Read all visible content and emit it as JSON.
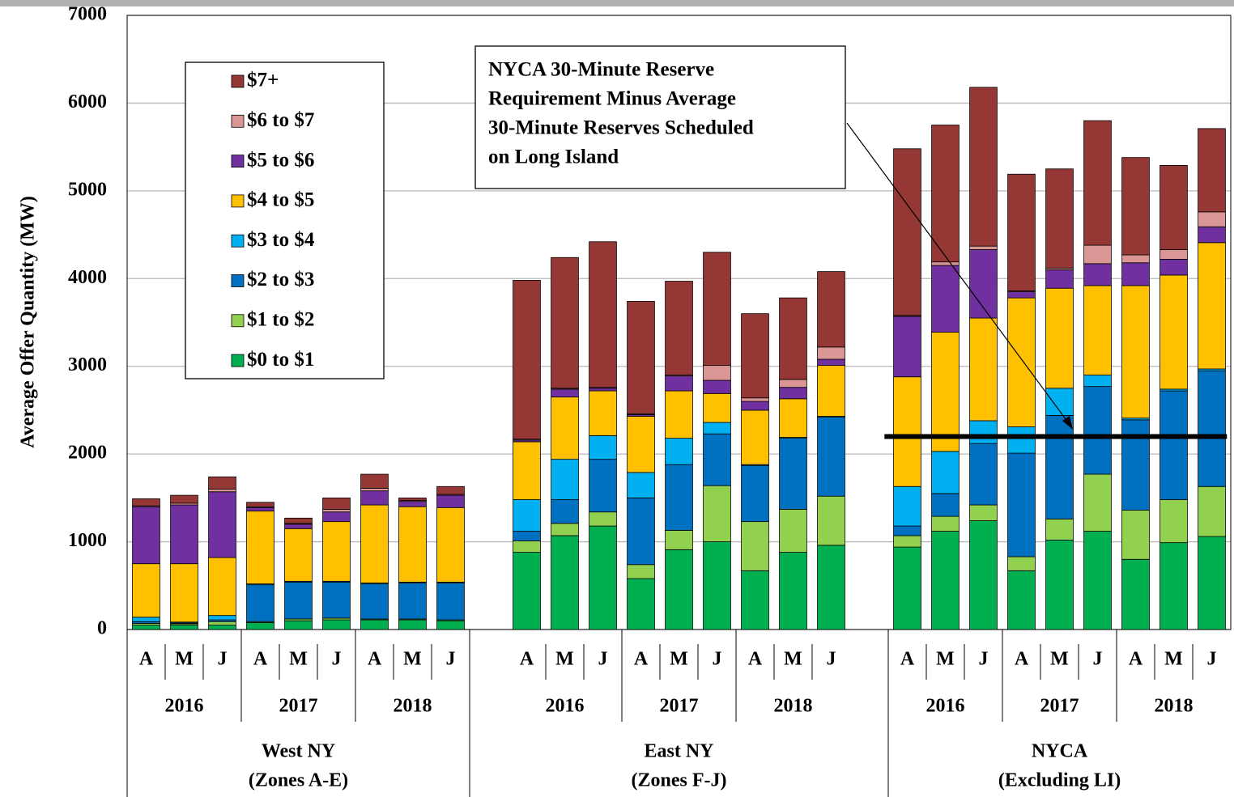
{
  "chart_data": {
    "type": "stacked_bar",
    "ylabel": "Average Offer Quantity (MW)",
    "ylim": [
      0,
      7000
    ],
    "yticks": [
      0,
      1000,
      2000,
      3000,
      4000,
      5000,
      6000,
      7000
    ],
    "grid": true,
    "categories": [
      "A",
      "M",
      "J",
      "A",
      "M",
      "J",
      "A",
      "M",
      "J",
      null,
      "A",
      "M",
      "J",
      "A",
      "M",
      "J",
      "A",
      "M",
      "J",
      null,
      "A",
      "M",
      "J",
      "A",
      "M",
      "J",
      "A",
      "M",
      "J"
    ],
    "years": [
      "2016",
      "2017",
      "2018"
    ],
    "regions": [
      [
        "West NY",
        "(Zones A-E)"
      ],
      [
        "East NY",
        "(Zones F-J)"
      ],
      [
        "NYCA",
        "(Excluding LI)"
      ]
    ],
    "series": [
      {
        "name": "$0 to $1",
        "color": "#00b050",
        "values": [
          50,
          50,
          50,
          80,
          100,
          110,
          110,
          110,
          100,
          null,
          880,
          1070,
          1180,
          580,
          910,
          1000,
          670,
          880,
          960,
          null,
          940,
          1120,
          1240,
          670,
          1020,
          1120,
          800,
          990,
          1060
        ]
      },
      {
        "name": "$1 to $2",
        "color": "#92d050",
        "values": [
          20,
          15,
          40,
          10,
          20,
          20,
          10,
          10,
          10,
          null,
          130,
          140,
          160,
          160,
          220,
          640,
          560,
          490,
          560,
          null,
          130,
          170,
          180,
          160,
          240,
          650,
          560,
          490,
          570
        ]
      },
      {
        "name": "$2 to $3",
        "color": "#0070c0",
        "values": [
          20,
          10,
          20,
          420,
          420,
          410,
          400,
          410,
          420,
          null,
          110,
          270,
          600,
          760,
          750,
          590,
          640,
          810,
          900,
          null,
          110,
          260,
          700,
          1180,
          1180,
          1000,
          1030,
          1240,
          1320
        ]
      },
      {
        "name": "$3 to $4",
        "color": "#00b0f0",
        "values": [
          50,
          10,
          50,
          10,
          10,
          10,
          10,
          10,
          10,
          null,
          360,
          460,
          270,
          290,
          300,
          130,
          10,
          10,
          10,
          null,
          450,
          480,
          260,
          300,
          310,
          130,
          20,
          20,
          20
        ]
      },
      {
        "name": "$4 to $5",
        "color": "#ffc000",
        "values": [
          610,
          665,
          660,
          830,
          600,
          680,
          890,
          860,
          850,
          null,
          660,
          710,
          510,
          640,
          540,
          330,
          620,
          440,
          580,
          null,
          1250,
          1360,
          1170,
          1470,
          1140,
          1020,
          1510,
          1300,
          1440
        ]
      },
      {
        "name": "$5 to $6",
        "color": "#7030a0",
        "values": [
          650,
          670,
          750,
          40,
          50,
          110,
          160,
          60,
          140,
          null,
          20,
          90,
          30,
          20,
          170,
          150,
          100,
          130,
          70,
          null,
          690,
          760,
          780,
          70,
          210,
          250,
          260,
          180,
          180
        ]
      },
      {
        "name": "$6 to $7",
        "color": "#da9694",
        "values": [
          10,
          20,
          30,
          10,
          10,
          30,
          30,
          10,
          10,
          null,
          10,
          10,
          10,
          10,
          10,
          170,
          40,
          90,
          140,
          null,
          10,
          40,
          40,
          10,
          20,
          210,
          90,
          110,
          170
        ]
      },
      {
        "name": "$7+",
        "color": "#953735",
        "values": [
          80,
          90,
          140,
          50,
          60,
          130,
          160,
          30,
          90,
          null,
          1810,
          1490,
          1660,
          1280,
          1070,
          1290,
          960,
          930,
          860,
          null,
          1900,
          1560,
          1810,
          1330,
          1130,
          1420,
          1110,
          960,
          950
        ]
      }
    ],
    "reference_value": 2200,
    "annotation": [
      "NYCA 30-Minute Reserve",
      "Requirement Minus  Average",
      "30-Minute Reserves Scheduled",
      "on Long Island"
    ]
  }
}
